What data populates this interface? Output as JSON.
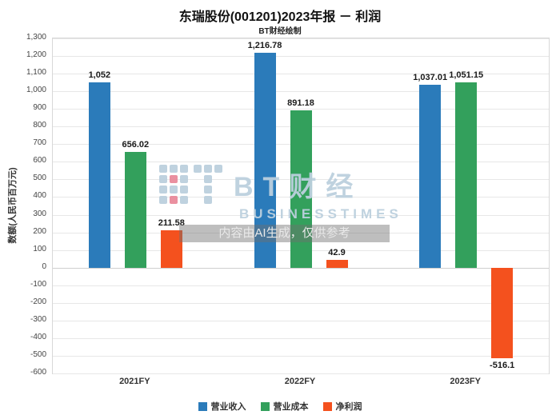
{
  "watermark": {
    "brand": "BT财经",
    "brand_sub": "BUSINESSTIMES",
    "ai_notice": "内容由AI生成，仅供参考"
  },
  "chart_data": {
    "type": "bar",
    "title": "东瑞股份(001201)2023年报 － 利润",
    "subtitle": "BT财经绘制",
    "xlabel": "",
    "ylabel": "数额(人民币百万元)",
    "categories": [
      "2021FY",
      "2022FY",
      "2023FY"
    ],
    "series": [
      {
        "name": "营业收入",
        "color": "#2b7bba",
        "values": [
          1052,
          1216.78,
          1037.01
        ],
        "labels": [
          "1,052",
          "1,216.78",
          "1,037.01"
        ]
      },
      {
        "name": "营业成本",
        "color": "#33a05c",
        "values": [
          656.02,
          891.18,
          1051.15
        ],
        "labels": [
          "656.02",
          "891.18",
          "1,051.15"
        ]
      },
      {
        "name": "净利润",
        "color": "#f4511e",
        "values": [
          211.58,
          42.9,
          -516.1
        ],
        "labels": [
          "211.58",
          "42.9",
          "-516.1"
        ]
      }
    ],
    "ylim": [
      -600,
      1300
    ],
    "ytick_step": 100,
    "grid": true,
    "legend_position": "bottom"
  }
}
